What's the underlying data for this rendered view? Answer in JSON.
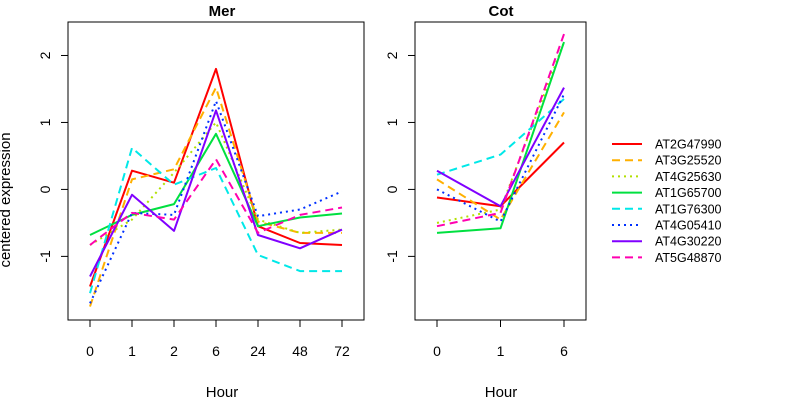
{
  "chart_data": [
    {
      "type": "line",
      "title": "Mer",
      "xlabel": "Hour",
      "ylabel": "centered expression",
      "categories": [
        "0",
        "1",
        "2",
        "6",
        "24",
        "48",
        "72"
      ],
      "yticks": [
        -1,
        0,
        1,
        2
      ],
      "ylim": [
        -1.95,
        2.5
      ],
      "series": [
        {
          "name": "AT2G47990",
          "values": [
            -1.45,
            0.28,
            0.1,
            1.8,
            -0.55,
            -0.8,
            -0.83
          ]
        },
        {
          "name": "AT3G25520",
          "values": [
            -1.75,
            0.15,
            0.3,
            1.52,
            -0.48,
            -0.65,
            -0.65
          ]
        },
        {
          "name": "AT4G25630",
          "values": [
            -0.83,
            -0.45,
            0.25,
            1.0,
            -0.45,
            -0.65,
            -0.6
          ]
        },
        {
          "name": "AT1G65700",
          "values": [
            -0.68,
            -0.38,
            -0.22,
            0.83,
            -0.55,
            -0.42,
            -0.36
          ]
        },
        {
          "name": "AT1G76300",
          "values": [
            -1.55,
            0.62,
            0.07,
            0.32,
            -0.98,
            -1.22,
            -1.22
          ]
        },
        {
          "name": "AT4G05410",
          "values": [
            -1.7,
            -0.35,
            -0.38,
            1.32,
            -0.4,
            -0.3,
            -0.03
          ]
        },
        {
          "name": "AT4G30220",
          "values": [
            -1.3,
            -0.08,
            -0.62,
            1.18,
            -0.68,
            -0.88,
            -0.6
          ]
        },
        {
          "name": "AT5G48870",
          "values": [
            -0.83,
            -0.35,
            -0.45,
            0.45,
            -0.65,
            -0.38,
            -0.27
          ]
        }
      ]
    },
    {
      "type": "line",
      "title": "Cot",
      "xlabel": "Hour",
      "categories": [
        "0",
        "1",
        "6"
      ],
      "yticks": [
        -1,
        0,
        1,
        2
      ],
      "ylim": [
        -1.95,
        2.5
      ],
      "series": [
        {
          "name": "AT2G47990",
          "values": [
            -0.12,
            -0.25,
            0.7
          ]
        },
        {
          "name": "AT3G25520",
          "values": [
            0.15,
            -0.45,
            1.15
          ]
        },
        {
          "name": "AT4G25630",
          "values": [
            -0.5,
            -0.3,
            2.2
          ]
        },
        {
          "name": "AT1G65700",
          "values": [
            -0.65,
            -0.58,
            2.2
          ]
        },
        {
          "name": "AT1G76300",
          "values": [
            0.22,
            0.52,
            1.35
          ]
        },
        {
          "name": "AT4G05410",
          "values": [
            0.0,
            -0.48,
            1.42
          ]
        },
        {
          "name": "AT4G30220",
          "values": [
            0.28,
            -0.25,
            1.52
          ]
        },
        {
          "name": "AT5G48870",
          "values": [
            -0.55,
            -0.35,
            2.32
          ]
        }
      ]
    }
  ],
  "legend": {
    "placement": "right",
    "entries": [
      {
        "name": "AT2G47990",
        "color": "#ff0000",
        "dash": "solid"
      },
      {
        "name": "AT3G25520",
        "color": "#ffb000",
        "dash": "dashed"
      },
      {
        "name": "AT4G25630",
        "color": "#b2e000",
        "dash": "dotted"
      },
      {
        "name": "AT1G65700",
        "color": "#00e040",
        "dash": "solid"
      },
      {
        "name": "AT1G76300",
        "color": "#00e8e8",
        "dash": "dashed"
      },
      {
        "name": "AT4G05410",
        "color": "#0030ff",
        "dash": "dotted"
      },
      {
        "name": "AT4G30220",
        "color": "#8000ff",
        "dash": "solid"
      },
      {
        "name": "AT5G48870",
        "color": "#ff00b0",
        "dash": "dashed"
      }
    ]
  }
}
